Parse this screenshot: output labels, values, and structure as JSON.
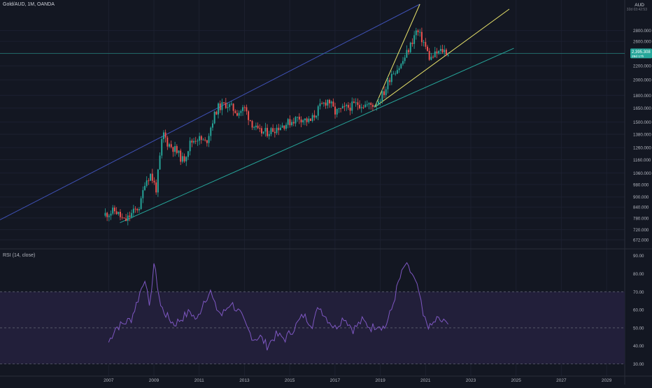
{
  "header": {
    "symbol": "Gold/AUD, 1M, OANDA",
    "currency": "AUD",
    "countdown": "32d 03:42:53"
  },
  "price_label": {
    "value": "2,395.308",
    "timer": "28d 17h"
  },
  "rsi_panel": {
    "title": "RSI (14, close)"
  },
  "colors": {
    "background": "#131722",
    "up_candle": "#26a69a",
    "down_candle": "#ef5350",
    "channel_upper": "#3f51b5",
    "channel_lower": "#26a69a",
    "wedge": "#e8e26a",
    "rsi_line": "#7e57c2",
    "rsi_band": "#221f3a",
    "price_tag": "#26a69a"
  },
  "chart_data": [
    {
      "type": "candlestick",
      "scale": "log",
      "x_axis": {
        "range": [
          2002.2,
          2029.8
        ],
        "tick_labels": [
          "2007",
          "2009",
          "2011",
          "2013",
          "2015",
          "2017",
          "2019",
          "2021",
          "2023",
          "2025",
          "2027",
          "2029"
        ]
      },
      "y_axis": {
        "range": [
          650,
          3350
        ],
        "tick_labels": [
          "2800.000",
          "2600.000",
          "2400.000",
          "2200.000",
          "2000.000",
          "1800.000",
          "1650.000",
          "1500.000",
          "1380.000",
          "1260.000",
          "1160.000",
          "1060.000",
          "980.000",
          "900.000",
          "840.000",
          "780.000",
          "720.000",
          "672.000"
        ]
      },
      "close_path": [
        {
          "t": 2006.85,
          "v": 800
        },
        {
          "t": 2007.3,
          "v": 820
        },
        {
          "t": 2007.7,
          "v": 760
        },
        {
          "t": 2008.0,
          "v": 800
        },
        {
          "t": 2008.4,
          "v": 850
        },
        {
          "t": 2008.6,
          "v": 1000
        },
        {
          "t": 2008.85,
          "v": 1050
        },
        {
          "t": 2009.1,
          "v": 950
        },
        {
          "t": 2009.4,
          "v": 1400
        },
        {
          "t": 2009.6,
          "v": 1300
        },
        {
          "t": 2009.9,
          "v": 1250
        },
        {
          "t": 2010.3,
          "v": 1150
        },
        {
          "t": 2010.6,
          "v": 1300
        },
        {
          "t": 2010.9,
          "v": 1350
        },
        {
          "t": 2011.3,
          "v": 1300
        },
        {
          "t": 2011.6,
          "v": 1520
        },
        {
          "t": 2011.8,
          "v": 1650
        },
        {
          "t": 2012.2,
          "v": 1700
        },
        {
          "t": 2012.7,
          "v": 1600
        },
        {
          "t": 2013.0,
          "v": 1650
        },
        {
          "t": 2013.3,
          "v": 1500
        },
        {
          "t": 2013.6,
          "v": 1400
        },
        {
          "t": 2014.0,
          "v": 1400
        },
        {
          "t": 2014.5,
          "v": 1450
        },
        {
          "t": 2015.0,
          "v": 1500
        },
        {
          "t": 2015.4,
          "v": 1550
        },
        {
          "t": 2015.9,
          "v": 1500
        },
        {
          "t": 2016.3,
          "v": 1650
        },
        {
          "t": 2016.7,
          "v": 1750
        },
        {
          "t": 2017.0,
          "v": 1600
        },
        {
          "t": 2017.5,
          "v": 1650
        },
        {
          "t": 2018.0,
          "v": 1700
        },
        {
          "t": 2018.5,
          "v": 1680
        },
        {
          "t": 2018.8,
          "v": 1700
        },
        {
          "t": 2019.2,
          "v": 1850
        },
        {
          "t": 2019.5,
          "v": 2100
        },
        {
          "t": 2019.9,
          "v": 2200
        },
        {
          "t": 2020.3,
          "v": 2500
        },
        {
          "t": 2020.6,
          "v": 2800
        },
        {
          "t": 2020.9,
          "v": 2600
        },
        {
          "t": 2021.2,
          "v": 2300
        },
        {
          "t": 2021.5,
          "v": 2400
        },
        {
          "t": 2021.8,
          "v": 2450
        },
        {
          "t": 2022.0,
          "v": 2395
        }
      ],
      "last_price": 2395.308,
      "trendlines": [
        {
          "name": "channel-upper",
          "from": {
            "t": 2002.2,
            "v": 770
          },
          "to": {
            "t": 2020.75,
            "v": 3350
          }
        },
        {
          "name": "channel-lower",
          "from": {
            "t": 2007.5,
            "v": 755
          },
          "to": {
            "t": 2024.9,
            "v": 2480
          }
        },
        {
          "name": "wedge-steep",
          "from": {
            "t": 2018.75,
            "v": 1660
          },
          "to": {
            "t": 2020.75,
            "v": 3350
          }
        },
        {
          "name": "wedge-upper",
          "from": {
            "t": 2018.75,
            "v": 1660
          },
          "to": {
            "t": 2024.7,
            "v": 3240
          }
        }
      ]
    },
    {
      "type": "line",
      "title": "RSI (14, close)",
      "y_axis": {
        "range": [
          24,
          93
        ],
        "tick_labels": [
          "90.00",
          "80.00",
          "70.00",
          "60.00",
          "50.00",
          "40.00",
          "30.00"
        ]
      },
      "band": [
        30,
        70
      ],
      "midline": 50,
      "x": [
        2007.0,
        2007.3,
        2007.6,
        2008.0,
        2008.3,
        2008.6,
        2008.8,
        2009.0,
        2009.3,
        2009.6,
        2009.9,
        2010.2,
        2010.6,
        2010.9,
        2011.2,
        2011.5,
        2011.7,
        2012.0,
        2012.4,
        2012.8,
        2013.1,
        2013.4,
        2013.7,
        2014.0,
        2014.4,
        2014.8,
        2015.2,
        2015.6,
        2016.0,
        2016.3,
        2016.6,
        2017.0,
        2017.4,
        2017.8,
        2018.2,
        2018.6,
        2018.9,
        2019.2,
        2019.5,
        2019.8,
        2020.1,
        2020.4,
        2020.7,
        2020.9,
        2021.2,
        2021.5,
        2021.8,
        2022.0
      ],
      "values": [
        42,
        50,
        52,
        55,
        66,
        78,
        60,
        86,
        62,
        56,
        52,
        55,
        59,
        54,
        65,
        70,
        62,
        57,
        64,
        58,
        50,
        44,
        45,
        40,
        46,
        44,
        50,
        57,
        52,
        62,
        56,
        50,
        56,
        49,
        54,
        50,
        52,
        50,
        60,
        75,
        85,
        80,
        70,
        56,
        50,
        55,
        53,
        52
      ]
    }
  ]
}
